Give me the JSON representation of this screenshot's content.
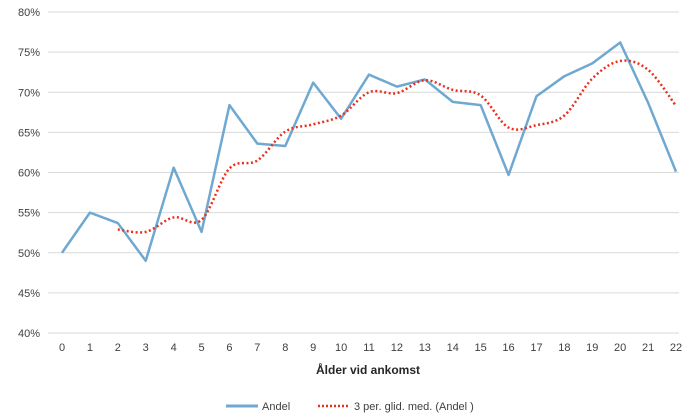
{
  "chart_data": {
    "type": "line",
    "xlabel": "Ålder vid ankomst",
    "ylabel": "",
    "categories": [
      "0",
      "1",
      "2",
      "3",
      "4",
      "5",
      "6",
      "7",
      "8",
      "9",
      "10",
      "11",
      "12",
      "13",
      "14",
      "15",
      "16",
      "17",
      "18",
      "19",
      "20",
      "21",
      "22"
    ],
    "ylim": [
      0.4,
      0.8
    ],
    "y_ticks": [
      "40%",
      "45%",
      "50%",
      "55%",
      "60%",
      "65%",
      "70%",
      "75%",
      "80%"
    ],
    "grid": true,
    "legend_position": "bottom",
    "series": [
      {
        "name": "Andel",
        "style": "solid",
        "color": "#6FA8D0",
        "values": [
          0.5,
          0.55,
          0.537,
          0.49,
          0.606,
          0.526,
          0.684,
          0.636,
          0.633,
          0.712,
          0.667,
          0.722,
          0.707,
          0.716,
          0.688,
          0.684,
          0.597,
          0.695,
          0.72,
          0.736,
          0.762,
          0.687,
          0.601
        ]
      },
      {
        "name": "3 per. glid. med. (Andel )",
        "style": "dotted",
        "color": "#E8301C",
        "values": [
          null,
          null,
          0.529,
          0.526,
          0.544,
          0.541,
          0.605,
          0.615,
          0.651,
          0.66,
          0.671,
          0.7,
          0.699,
          0.715,
          0.703,
          0.696,
          0.656,
          0.659,
          0.671,
          0.717,
          0.739,
          0.728,
          0.683
        ]
      }
    ]
  }
}
